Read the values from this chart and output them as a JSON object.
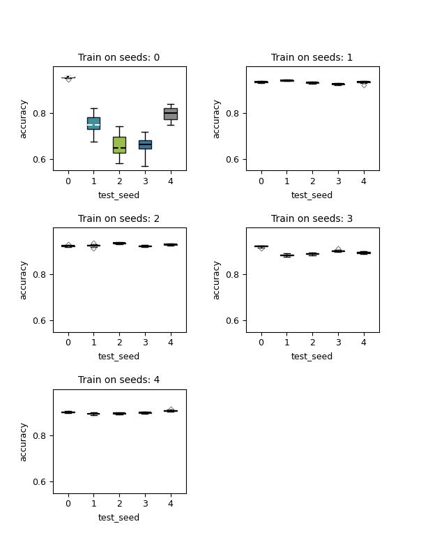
{
  "titles": [
    "Train on seeds: 0",
    "Train on seeds: 1",
    "Train on seeds: 2",
    "Train on seeds: 3",
    "Train on seeds: 4"
  ],
  "xlabel": "test_seed",
  "ylabel": "accuracy",
  "subplots": [
    {
      "box_data": [
        {
          "med": 0.955,
          "q1": 0.953,
          "q3": 0.957,
          "whislo": 0.95,
          "whishi": 0.96,
          "fliers": [
            0.945
          ]
        },
        {
          "med": 0.748,
          "q1": 0.728,
          "q3": 0.78,
          "whislo": 0.675,
          "whishi": 0.82,
          "fliers": []
        },
        {
          "med": 0.648,
          "q1": 0.628,
          "q3": 0.695,
          "whislo": 0.58,
          "whishi": 0.742,
          "fliers": []
        },
        {
          "med": 0.662,
          "q1": 0.645,
          "q3": 0.68,
          "whislo": 0.568,
          "whishi": 0.718,
          "fliers": []
        },
        {
          "med": 0.8,
          "q1": 0.773,
          "q3": 0.82,
          "whislo": 0.748,
          "whishi": 0.838,
          "fliers": []
        }
      ],
      "colors": [
        "#1e7b8c",
        "#1e7b8c",
        "#8ab229",
        "#1a5e8a",
        "#757575"
      ],
      "median_styles": [
        "dashed_white",
        "dashed_white",
        "dashed_black",
        "solid_black",
        "solid_black"
      ],
      "ylim": [
        0.55,
        1.0
      ],
      "yticks": [
        0.6,
        0.8
      ]
    },
    {
      "box_data": [
        {
          "med": 0.933,
          "q1": 0.9315,
          "q3": 0.9345,
          "whislo": 0.928,
          "whishi": 0.938,
          "fliers": []
        },
        {
          "med": 0.94,
          "q1": 0.9385,
          "q3": 0.9415,
          "whislo": 0.936,
          "whishi": 0.944,
          "fliers": []
        },
        {
          "med": 0.93,
          "q1": 0.9285,
          "q3": 0.9315,
          "whislo": 0.926,
          "whishi": 0.934,
          "fliers": []
        },
        {
          "med": 0.925,
          "q1": 0.9235,
          "q3": 0.9265,
          "whislo": 0.92,
          "whishi": 0.929,
          "fliers": []
        },
        {
          "med": 0.933,
          "q1": 0.9315,
          "q3": 0.9345,
          "whislo": 0.928,
          "whishi": 0.938,
          "fliers": [
            0.92
          ]
        }
      ],
      "colors": [
        "#1a1a1a",
        "#1a1a1a",
        "#1a1a1a",
        "#1a1a1a",
        "#1a1a1a"
      ],
      "median_styles": [
        "solid_black",
        "solid_black",
        "solid_black",
        "solid_black",
        "solid_black"
      ],
      "ylim": [
        0.55,
        1.0
      ],
      "yticks": [
        0.6,
        0.8
      ]
    },
    {
      "box_data": [
        {
          "med": 0.922,
          "q1": 0.9205,
          "q3": 0.9235,
          "whislo": 0.917,
          "whishi": 0.926,
          "fliers": [
            0.929
          ]
        },
        {
          "med": 0.923,
          "q1": 0.9215,
          "q3": 0.9245,
          "whislo": 0.918,
          "whishi": 0.928,
          "fliers": [
            0.91,
            0.934
          ]
        },
        {
          "med": 0.934,
          "q1": 0.9325,
          "q3": 0.9355,
          "whislo": 0.929,
          "whishi": 0.939,
          "fliers": []
        },
        {
          "med": 0.921,
          "q1": 0.9195,
          "q3": 0.9225,
          "whislo": 0.916,
          "whishi": 0.925,
          "fliers": []
        },
        {
          "med": 0.928,
          "q1": 0.9265,
          "q3": 0.9295,
          "whislo": 0.923,
          "whishi": 0.933,
          "fliers": []
        }
      ],
      "colors": [
        "#1a1a1a",
        "#1a1a1a",
        "#1a1a1a",
        "#1a1a1a",
        "#1a1a1a"
      ],
      "median_styles": [
        "solid_black",
        "solid_black",
        "solid_black",
        "solid_black",
        "solid_black"
      ],
      "ylim": [
        0.55,
        1.0
      ],
      "yticks": [
        0.6,
        0.8
      ]
    },
    {
      "box_data": [
        {
          "med": 0.92,
          "q1": 0.9185,
          "q3": 0.9215,
          "whislo": 0.915,
          "whishi": 0.924,
          "fliers": [
            0.91
          ]
        },
        {
          "med": 0.882,
          "q1": 0.8795,
          "q3": 0.8845,
          "whislo": 0.875,
          "whishi": 0.889,
          "fliers": []
        },
        {
          "med": 0.888,
          "q1": 0.8855,
          "q3": 0.8905,
          "whislo": 0.881,
          "whishi": 0.894,
          "fliers": []
        },
        {
          "med": 0.9,
          "q1": 0.8985,
          "q3": 0.9015,
          "whislo": 0.895,
          "whishi": 0.905,
          "fliers": [
            0.912
          ]
        },
        {
          "med": 0.893,
          "q1": 0.8905,
          "q3": 0.8955,
          "whislo": 0.886,
          "whishi": 0.899,
          "fliers": []
        }
      ],
      "colors": [
        "#1a1a1a",
        "#1a1a1a",
        "#1a1a1a",
        "#1a1a1a",
        "#1a1a1a"
      ],
      "median_styles": [
        "solid_black",
        "solid_black",
        "solid_black",
        "solid_black",
        "solid_black"
      ],
      "ylim": [
        0.55,
        1.0
      ],
      "yticks": [
        0.6,
        0.8
      ]
    },
    {
      "box_data": [
        {
          "med": 0.9,
          "q1": 0.8985,
          "q3": 0.9015,
          "whislo": 0.895,
          "whishi": 0.905,
          "fliers": []
        },
        {
          "med": 0.893,
          "q1": 0.8915,
          "q3": 0.8945,
          "whislo": 0.887,
          "whishi": 0.898,
          "fliers": []
        },
        {
          "med": 0.895,
          "q1": 0.8935,
          "q3": 0.8965,
          "whislo": 0.889,
          "whishi": 0.9,
          "fliers": []
        },
        {
          "med": 0.898,
          "q1": 0.8965,
          "q3": 0.8995,
          "whislo": 0.893,
          "whishi": 0.903,
          "fliers": []
        },
        {
          "med": 0.906,
          "q1": 0.9045,
          "q3": 0.9075,
          "whislo": 0.901,
          "whishi": 0.911,
          "fliers": [
            0.915
          ]
        }
      ],
      "colors": [
        "#1a1a1a",
        "#1a1a1a",
        "#1a1a1a",
        "#1a1a1a",
        "#1a1a1a"
      ],
      "median_styles": [
        "solid_black",
        "solid_black",
        "solid_black",
        "solid_black",
        "solid_black"
      ],
      "ylim": [
        0.55,
        1.0
      ],
      "yticks": [
        0.6,
        0.8
      ]
    }
  ]
}
